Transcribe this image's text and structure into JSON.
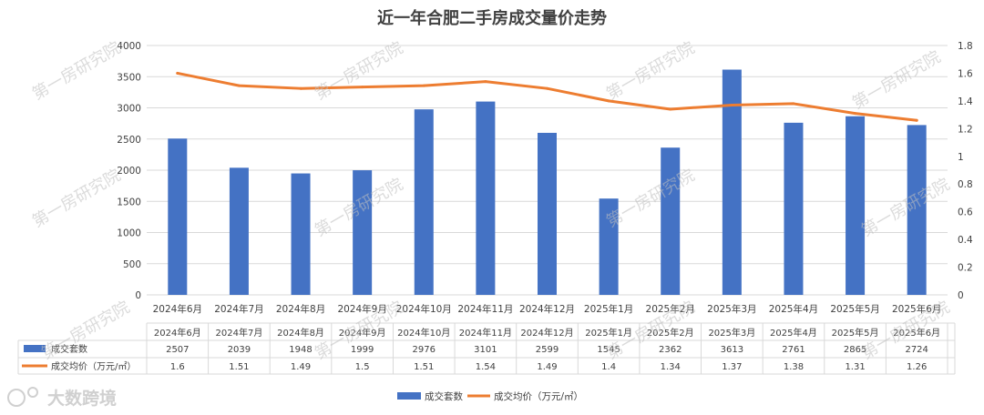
{
  "chart_data": {
    "type": "bar",
    "title": "近一年合肥二手房成交量价走势",
    "categories": [
      "2024年6月",
      "2024年7月",
      "2024年8月",
      "2024年9月",
      "2024年10月",
      "2024年11月",
      "2024年12月",
      "2025年1月",
      "2025年2月",
      "2025年3月",
      "2025年4月",
      "2025年5月",
      "2025年6月"
    ],
    "series": [
      {
        "name": "成交套数",
        "type": "bar",
        "axis": "left",
        "color": "#4472C4",
        "values": [
          2507,
          2039,
          1948,
          1999,
          2976,
          3101,
          2599,
          1545,
          2362,
          3613,
          2761,
          2865,
          2724
        ]
      },
      {
        "name": "成交均价（万元/㎡）",
        "type": "line",
        "axis": "right",
        "color": "#ED7D31",
        "values": [
          1.6,
          1.51,
          1.49,
          1.5,
          1.51,
          1.54,
          1.49,
          1.4,
          1.34,
          1.37,
          1.38,
          1.31,
          1.26
        ]
      }
    ],
    "left_axis": {
      "ylim": [
        0,
        4000
      ],
      "ticks": [
        "0",
        "500",
        "1000",
        "1500",
        "2000",
        "2500",
        "3000",
        "3500",
        "4000"
      ]
    },
    "right_axis": {
      "ylim": [
        0,
        1.8
      ],
      "ticks": [
        "0",
        "0.2",
        "0.4",
        "0.6",
        "0.8",
        "1",
        "1.2",
        "1.4",
        "1.6",
        "1.8"
      ]
    },
    "grid": true,
    "legend_position": "bottom",
    "data_table": true
  },
  "watermark": "第一房研究院",
  "brand": "大数跨境"
}
